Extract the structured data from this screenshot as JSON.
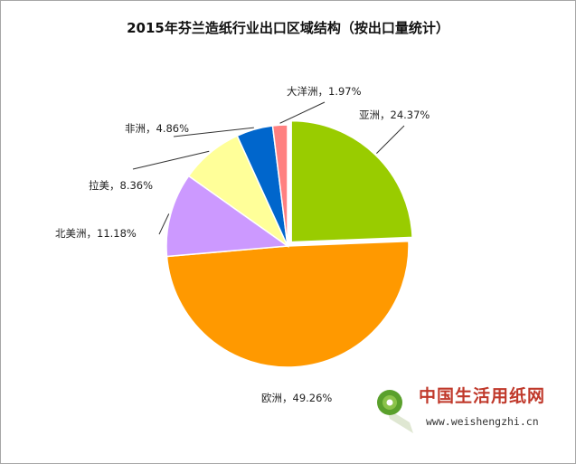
{
  "chart_data": {
    "type": "pie",
    "title": "2015年芬兰造纸行业出口区域结构（按出口量统计）",
    "slices": [
      {
        "name": "亚洲",
        "value": 24.37,
        "label": "亚洲，24.37%",
        "color": "#99cc00"
      },
      {
        "name": "欧洲",
        "value": 49.26,
        "label": "欧洲，49.26%",
        "color": "#ff9900"
      },
      {
        "name": "北美洲",
        "value": 11.18,
        "label": "北美洲，11.18%",
        "color": "#cc99ff"
      },
      {
        "name": "拉美",
        "value": 8.36,
        "label": "拉美，8.36%",
        "color": "#ffff99"
      },
      {
        "name": "非洲",
        "value": 4.86,
        "label": "非洲，4.86%",
        "color": "#0066cc"
      },
      {
        "name": "大洋洲",
        "value": 1.97,
        "label": "大洋洲，1.97%",
        "color": "#ff8080"
      }
    ],
    "start": "12 o'clock",
    "direction": "clockwise",
    "legend": "none"
  },
  "watermark": {
    "name": "中国生活用纸网",
    "url": "www.weishengzhi.cn",
    "logo_icon": "paper-roll-icon"
  }
}
